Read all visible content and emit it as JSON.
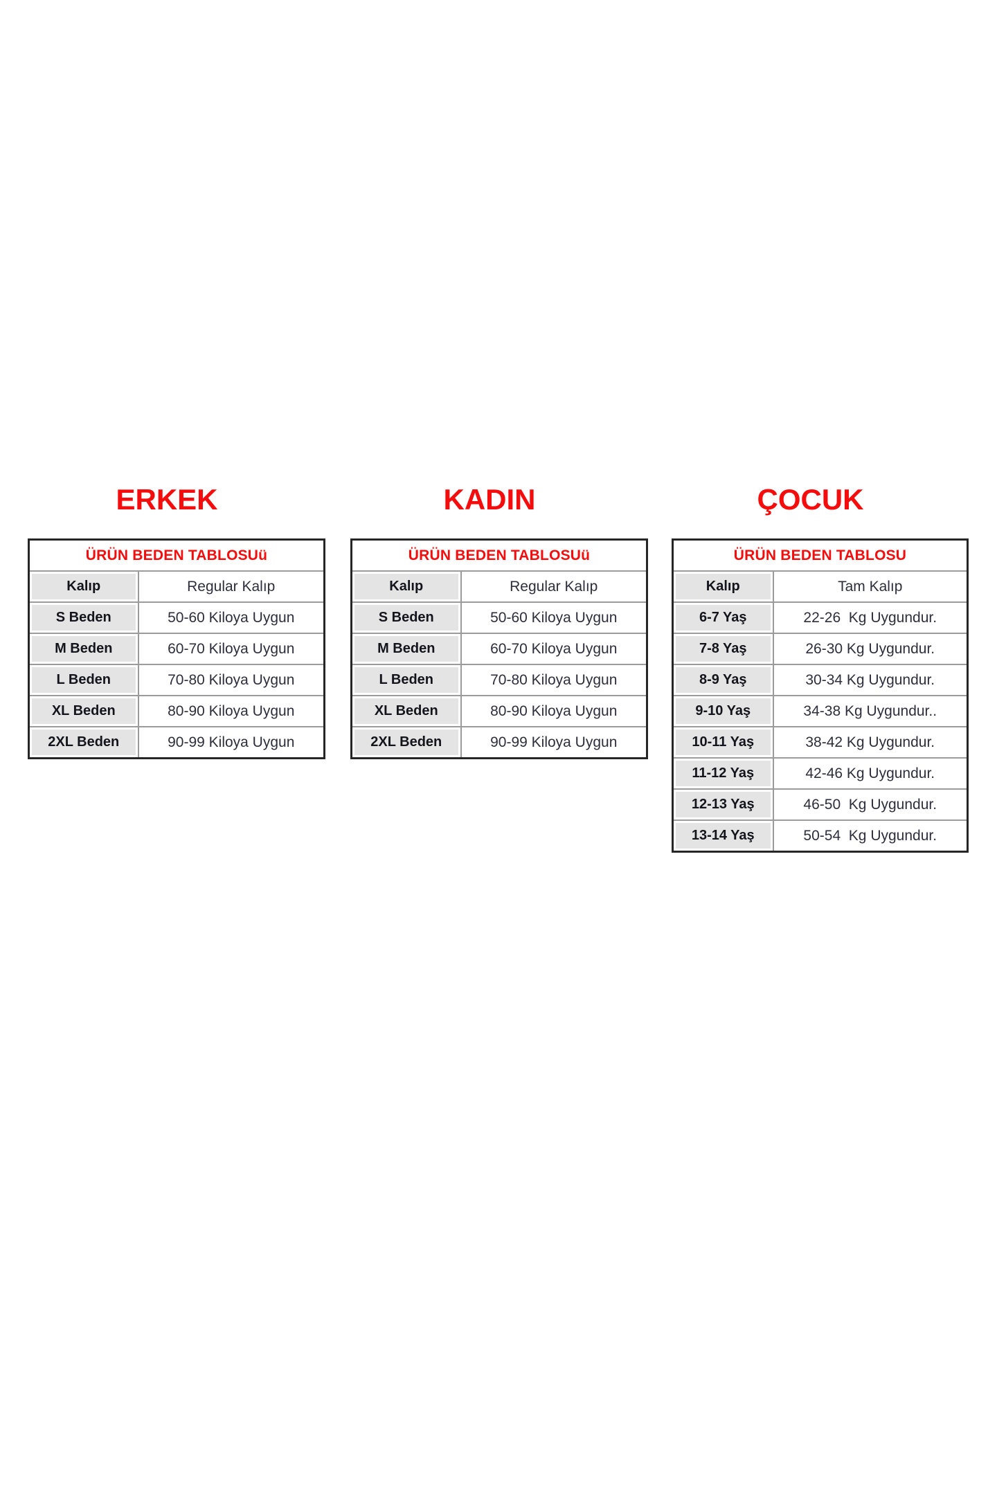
{
  "colors": {
    "accent_red": "#f50c0c",
    "label_cell_bg": "#e4e4e4",
    "grid_line": "#9b9b9b",
    "outer_border": "#262626",
    "value_text": "#2e2e3c",
    "label_text": "#14141c",
    "page_bg": "#ffffff"
  },
  "sections": [
    {
      "id": "erkek",
      "title": "ERKEK",
      "table": {
        "header": "ÜRÜN BEDEN TABLOSUü",
        "rows": [
          {
            "label": "Kalıp",
            "value": "Regular Kalıp"
          },
          {
            "label": "S Beden",
            "value": "50-60 Kiloya Uygun"
          },
          {
            "label": "M Beden",
            "value": "60-70 Kiloya Uygun"
          },
          {
            "label": "L Beden",
            "value": "70-80 Kiloya Uygun"
          },
          {
            "label": "XL Beden",
            "value": "80-90 Kiloya Uygun"
          },
          {
            "label": "2XL Beden",
            "value": "90-99 Kiloya Uygun"
          }
        ]
      }
    },
    {
      "id": "kadin",
      "title": "KADIN",
      "table": {
        "header": "ÜRÜN BEDEN TABLOSUü",
        "rows": [
          {
            "label": "Kalıp",
            "value": "Regular Kalıp"
          },
          {
            "label": "S Beden",
            "value": "50-60 Kiloya Uygun"
          },
          {
            "label": "M Beden",
            "value": "60-70 Kiloya Uygun"
          },
          {
            "label": "L Beden",
            "value": "70-80 Kiloya Uygun"
          },
          {
            "label": "XL Beden",
            "value": "80-90 Kiloya Uygun"
          },
          {
            "label": "2XL Beden",
            "value": "90-99 Kiloya Uygun"
          }
        ]
      }
    },
    {
      "id": "cocuk",
      "title": "ÇOCUK",
      "table": {
        "header": "ÜRÜN BEDEN TABLOSU",
        "rows": [
          {
            "label": "6-7 Yaş",
            "value": "22-26  Kg Uygundur."
          },
          {
            "label": "7-8 Yaş",
            "value": "26-30 Kg Uygundur."
          },
          {
            "label": "8-9 Yaş",
            "value": "30-34 Kg Uygundur."
          },
          {
            "label": "9-10 Yaş",
            "value": "34-38 Kg Uygundur.."
          },
          {
            "label": "10-11 Yaş",
            "value": "38-42 Kg Uygundur."
          },
          {
            "label": "11-12 Yaş",
            "value": "42-46 Kg Uygundur."
          },
          {
            "label": "12-13 Yaş",
            "value": "46-50  Kg Uygundur."
          },
          {
            "label": "13-14 Yaş",
            "value": "50-54  Kg Uygundur."
          }
        ]
      }
    }
  ],
  "cocuk_kalip_row": {
    "label": "Kalıp",
    "value": "Tam Kalıp"
  }
}
